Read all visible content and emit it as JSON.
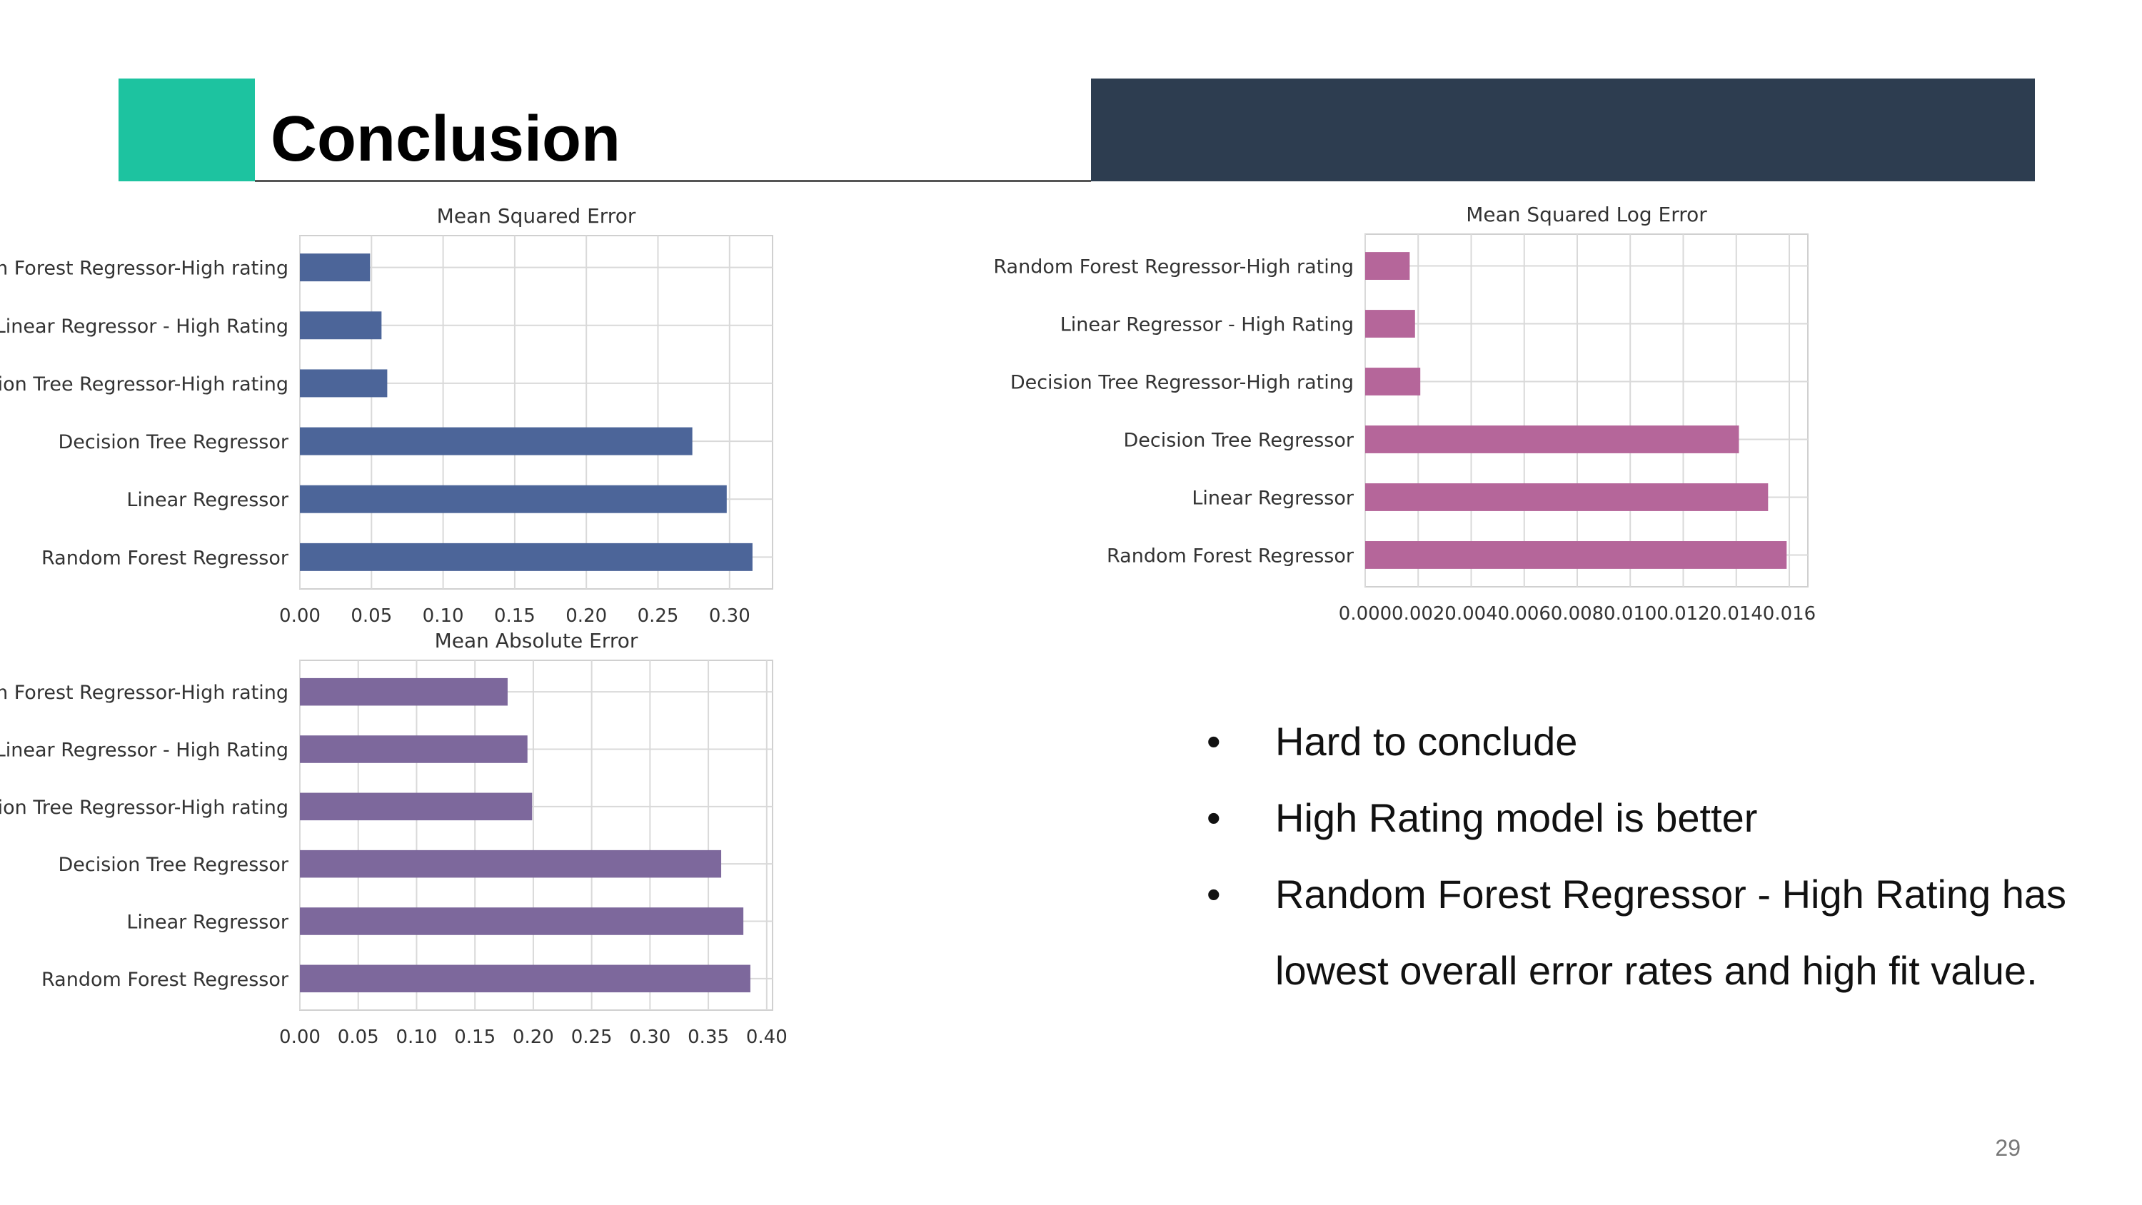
{
  "slide": {
    "title": "Conclusion",
    "page_number": "29",
    "colors": {
      "teal_accent": "#1dc3a0",
      "dark_block": "#2d3d50"
    }
  },
  "bullets": [
    "Hard to conclude",
    "High Rating model is better",
    "Random Forest Regressor - High Rating has lowest overall error rates and high fit value."
  ],
  "bullet_glyph": "•",
  "chart_data": [
    {
      "type": "bar",
      "orientation": "horizontal",
      "title": "Mean Squared Error",
      "xlabel": "",
      "color": "#4c6599",
      "categories": [
        "Random Forest Regressor-High rating",
        "Linear Regressor - High Rating",
        "Decision Tree Regressor-High rating",
        "Decision Tree Regressor",
        "Linear Regressor",
        "Random Forest Regressor"
      ],
      "values": [
        0.049,
        0.057,
        0.061,
        0.274,
        0.298,
        0.316
      ],
      "xlim": [
        0,
        0.33
      ],
      "xticks": [
        0,
        0.05,
        0.1,
        0.15,
        0.2,
        0.25,
        0.3
      ],
      "xtick_labels": [
        "0.00",
        "0.05",
        "0.10",
        "0.15",
        "0.20",
        "0.25",
        "0.30"
      ],
      "grid": true
    },
    {
      "type": "bar",
      "orientation": "horizontal",
      "title": "Mean Squared Log Error",
      "xlabel": "",
      "color": "#b5669a",
      "categories": [
        "Random Forest Regressor-High rating",
        "Linear Regressor - High Rating",
        "Decision Tree Regressor-High rating",
        "Decision Tree Regressor",
        "Linear Regressor",
        "Random Forest Regressor"
      ],
      "values": [
        0.00168,
        0.00188,
        0.00208,
        0.0141,
        0.0152,
        0.0159
      ],
      "xlim": [
        0,
        0.0167
      ],
      "xticks": [
        0,
        0.002,
        0.004,
        0.006,
        0.008,
        0.01,
        0.012,
        0.014,
        0.016
      ],
      "xtick_labels": [
        "0.000",
        "0.002",
        "0.004",
        "0.006",
        "0.008",
        "0.010",
        "0.012",
        "0.014",
        "0.016"
      ],
      "grid": true
    },
    {
      "type": "bar",
      "orientation": "horizontal",
      "title": "Mean Absolute Error",
      "xlabel": "",
      "color": "#7d689c",
      "categories": [
        "Random Forest Regressor-High rating",
        "Linear Regressor - High Rating",
        "Decision Tree Regressor-High rating",
        "Decision Tree Regressor",
        "Linear Regressor",
        "Random Forest Regressor"
      ],
      "values": [
        0.178,
        0.195,
        0.199,
        0.361,
        0.38,
        0.386
      ],
      "xlim": [
        0,
        0.405
      ],
      "xticks": [
        0,
        0.05,
        0.1,
        0.15,
        0.2,
        0.25,
        0.3,
        0.35,
        0.4
      ],
      "xtick_labels": [
        "0.00",
        "0.05",
        "0.10",
        "0.15",
        "0.20",
        "0.25",
        "0.30",
        "0.35",
        "0.40"
      ],
      "grid": true
    }
  ]
}
